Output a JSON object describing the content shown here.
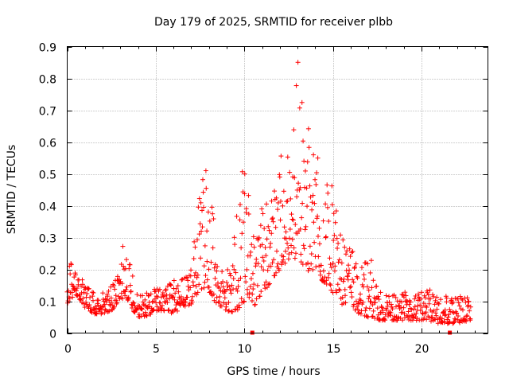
{
  "chart_data": {
    "type": "scatter",
    "title": "Day 179 of 2025, SRMTID for receiver plbb",
    "xlabel": "GPS time / hours",
    "ylabel": "SRMTID / TECUs",
    "xlim": [
      0,
      23.75
    ],
    "ylim": [
      0,
      0.9
    ],
    "x_ticks": [
      0,
      5,
      10,
      15,
      20
    ],
    "y_ticks": [
      0,
      0.1,
      0.2,
      0.3,
      0.4,
      0.5,
      0.6,
      0.7,
      0.8,
      0.9
    ],
    "x_tick_labels": [
      "0",
      "5",
      "10",
      "15",
      "20"
    ],
    "y_tick_labels": [
      "0",
      "0.1",
      "0.2",
      "0.3",
      "0.4",
      "0.5",
      "0.6",
      "0.7",
      "0.8",
      "0.9"
    ],
    "grid": true,
    "marker": "+",
    "color": "#ff0000",
    "zero_markers_x": [
      10.45,
      21.6
    ],
    "series": [
      {
        "name": "SRMTID",
        "envelope": {
          "hours": [
            0,
            0.25,
            0.5,
            1,
            1.5,
            2,
            2.5,
            3,
            3.3,
            3.6,
            4,
            4.5,
            5,
            5.5,
            6,
            6.5,
            7,
            7.5,
            8,
            8.5,
            9,
            9.5,
            10,
            10.5,
            11,
            11.5,
            12,
            12.5,
            13,
            13.5,
            14,
            14.5,
            15,
            15.5,
            16,
            16.5,
            17,
            17.5,
            18,
            18.5,
            19,
            20,
            21,
            22,
            22.8
          ],
          "low": [
            0.09,
            0.11,
            0.12,
            0.08,
            0.06,
            0.06,
            0.07,
            0.1,
            0.12,
            0.08,
            0.05,
            0.05,
            0.07,
            0.07,
            0.06,
            0.08,
            0.09,
            0.14,
            0.12,
            0.09,
            0.07,
            0.06,
            0.1,
            0.08,
            0.12,
            0.16,
            0.2,
            0.22,
            0.24,
            0.2,
            0.18,
            0.16,
            0.12,
            0.09,
            0.08,
            0.06,
            0.05,
            0.04,
            0.04,
            0.04,
            0.04,
            0.04,
            0.03,
            0.03,
            0.04
          ],
          "high": [
            0.2,
            0.23,
            0.2,
            0.16,
            0.13,
            0.13,
            0.15,
            0.24,
            0.31,
            0.2,
            0.12,
            0.13,
            0.14,
            0.16,
            0.17,
            0.17,
            0.2,
            0.5,
            0.52,
            0.22,
            0.2,
            0.35,
            0.56,
            0.3,
            0.4,
            0.45,
            0.55,
            0.62,
            0.88,
            0.75,
            0.6,
            0.5,
            0.46,
            0.32,
            0.28,
            0.2,
            0.28,
            0.14,
            0.12,
            0.12,
            0.13,
            0.14,
            0.13,
            0.12,
            0.11
          ],
          "points_per_hour": 45
        }
      }
    ]
  }
}
